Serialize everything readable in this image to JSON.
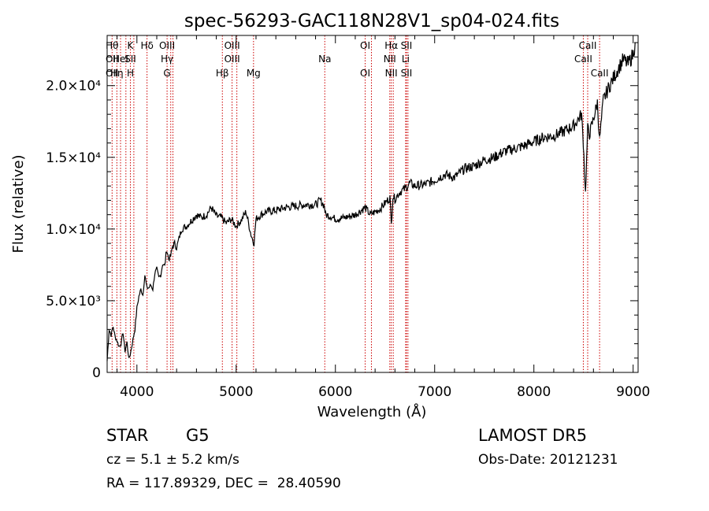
{
  "chart_data": {
    "type": "line",
    "title": "spec-56293-GAC118N28V1_sp04-024.fits",
    "xlabel": "Wavelength (Å)",
    "ylabel": "Flux (relative)",
    "xlim": [
      3700,
      9050
    ],
    "ylim": [
      0,
      23500
    ],
    "x_ticks": [
      {
        "value": 4000,
        "label": "4000"
      },
      {
        "value": 5000,
        "label": "5000"
      },
      {
        "value": 6000,
        "label": "6000"
      },
      {
        "value": 7000,
        "label": "7000"
      },
      {
        "value": 8000,
        "label": "8000"
      },
      {
        "value": 9000,
        "label": "9000"
      }
    ],
    "y_ticks": [
      {
        "value": 0,
        "label": "0"
      },
      {
        "value": 5000,
        "label": "5.0×10³"
      },
      {
        "value": 10000,
        "label": "1.0×10⁴"
      },
      {
        "value": 15000,
        "label": "1.5×10⁴"
      },
      {
        "value": 20000,
        "label": "2.0×10⁴"
      }
    ],
    "grid": false,
    "series": [
      {
        "color": "#000000",
        "x": [
          3700,
          3720,
          3740,
          3760,
          3780,
          3800,
          3820,
          3840,
          3860,
          3880,
          3900,
          3920,
          3940,
          3960,
          3980,
          4000,
          4020,
          4040,
          4060,
          4080,
          4100,
          4120,
          4140,
          4160,
          4180,
          4200,
          4220,
          4240,
          4260,
          4280,
          4300,
          4320,
          4340,
          4360,
          4380,
          4400,
          4450,
          4500,
          4550,
          4600,
          4650,
          4700,
          4750,
          4800,
          4850,
          4900,
          4950,
          5000,
          5050,
          5100,
          5150,
          5180,
          5200,
          5250,
          5300,
          5400,
          5500,
          5600,
          5700,
          5800,
          5850,
          5890,
          5900,
          5950,
          6000,
          6100,
          6200,
          6300,
          6350,
          6400,
          6450,
          6500,
          6550,
          6563,
          6580,
          6600,
          6650,
          6700,
          6750,
          6800,
          6900,
          7000,
          7100,
          7200,
          7300,
          7400,
          7500,
          7600,
          7700,
          7800,
          7900,
          8000,
          8100,
          8200,
          8300,
          8400,
          8450,
          8480,
          8498,
          8520,
          8542,
          8560,
          8600,
          8640,
          8662,
          8700,
          8750,
          8800,
          8850,
          8900,
          8950,
          9000,
          9020
        ],
        "y": [
          800,
          3000,
          2600,
          3200,
          2500,
          2200,
          1800,
          2000,
          2800,
          1500,
          2100,
          900,
          1500,
          2300,
          3000,
          4500,
          5300,
          5800,
          5400,
          6800,
          5900,
          5900,
          6100,
          5800,
          6900,
          7200,
          6600,
          6800,
          7600,
          7400,
          8600,
          7900,
          8100,
          8800,
          9000,
          8700,
          10000,
          10200,
          10600,
          11000,
          10800,
          11000,
          11500,
          10900,
          10800,
          10400,
          10700,
          10200,
          10600,
          11200,
          9600,
          9000,
          10700,
          11000,
          11200,
          11300,
          11500,
          11600,
          11700,
          11700,
          12000,
          11600,
          11000,
          10900,
          10700,
          10800,
          11000,
          11500,
          11000,
          11200,
          11400,
          11800,
          12200,
          10300,
          12300,
          12100,
          12600,
          12800,
          13200,
          13000,
          13100,
          13400,
          13800,
          13600,
          14200,
          14400,
          14800,
          15000,
          15400,
          15600,
          15800,
          16100,
          16400,
          16500,
          16800,
          17200,
          17700,
          18000,
          16000,
          12500,
          17000,
          16600,
          17700,
          18800,
          16200,
          19000,
          19800,
          20500,
          21200,
          21800,
          21500,
          22200,
          23000
        ]
      }
    ],
    "line_marks": [
      {
        "x": 3750,
        "labels": [
          "Hθ",
          "OII",
          "OII"
        ]
      },
      {
        "x": 3798,
        "labels": [
          "",
          "",
          "Hη"
        ]
      },
      {
        "x": 3835,
        "labels": [
          "",
          "HeI",
          ""
        ]
      },
      {
        "x": 3889,
        "labels": [
          "",
          "",
          ""
        ]
      },
      {
        "x": 3934,
        "labels": [
          "K",
          "SII",
          "H"
        ]
      },
      {
        "x": 3969,
        "labels": [
          "",
          "",
          ""
        ]
      },
      {
        "x": 4102,
        "labels": [
          "Hδ",
          "",
          ""
        ]
      },
      {
        "x": 4304,
        "labels": [
          "OIII",
          "Hγ",
          "G"
        ]
      },
      {
        "x": 4341,
        "labels": [
          "",
          "",
          ""
        ]
      },
      {
        "x": 4363,
        "labels": [
          "",
          "",
          ""
        ]
      },
      {
        "x": 4861,
        "labels": [
          "",
          "",
          "Hβ"
        ]
      },
      {
        "x": 4959,
        "labels": [
          "OIII",
          "OIII",
          ""
        ]
      },
      {
        "x": 5007,
        "labels": [
          "",
          "",
          ""
        ]
      },
      {
        "x": 5175,
        "labels": [
          "",
          "",
          "Mg"
        ]
      },
      {
        "x": 5893,
        "labels": [
          "",
          "Na",
          ""
        ]
      },
      {
        "x": 6300,
        "labels": [
          "OI",
          "",
          "OI"
        ]
      },
      {
        "x": 6363,
        "labels": [
          "",
          "",
          ""
        ]
      },
      {
        "x": 6548,
        "labels": [
          "",
          "NII",
          ""
        ]
      },
      {
        "x": 6563,
        "labels": [
          "Hα",
          "",
          "NII"
        ]
      },
      {
        "x": 6583,
        "labels": [
          "",
          "",
          ""
        ]
      },
      {
        "x": 6708,
        "labels": [
          "",
          "Li",
          ""
        ]
      },
      {
        "x": 6716,
        "labels": [
          "SII",
          "",
          "SII"
        ]
      },
      {
        "x": 6731,
        "labels": [
          "",
          "",
          ""
        ]
      },
      {
        "x": 8498,
        "labels": [
          "",
          "CaII",
          ""
        ]
      },
      {
        "x": 8542,
        "labels": [
          "CaII",
          "",
          ""
        ]
      },
      {
        "x": 8662,
        "labels": [
          "",
          "",
          "CaII"
        ]
      }
    ]
  },
  "info": {
    "class_label": "STAR",
    "subclass": "G5",
    "cz": "cz = 5.1 ± 5.2 km/s",
    "coords": "RA = 117.89329, DEC =  28.40590",
    "survey": "LAMOST DR5",
    "obs_date": "Obs-Date: 20121231"
  }
}
